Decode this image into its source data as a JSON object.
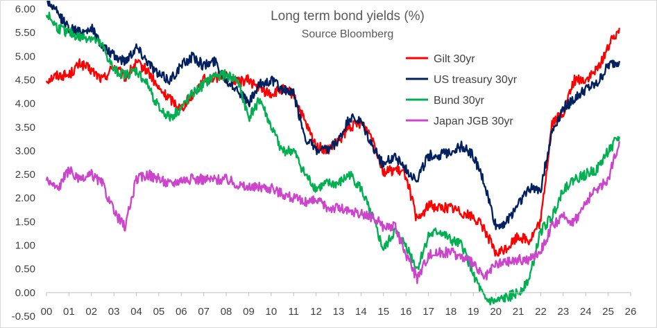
{
  "chart_data": {
    "type": "line",
    "title": "Long term bond yields (%)",
    "subtitle": "Source Bloomberg",
    "xlabel": "",
    "ylabel": "",
    "xlim": [
      0,
      26
    ],
    "ylim": [
      -0.5,
      6.0
    ],
    "x_ticks": [
      "00",
      "01",
      "02",
      "03",
      "04",
      "05",
      "06",
      "07",
      "08",
      "09",
      "10",
      "11",
      "12",
      "13",
      "14",
      "15",
      "16",
      "17",
      "18",
      "19",
      "20",
      "21",
      "22",
      "23",
      "24",
      "25",
      "26"
    ],
    "y_ticks": [
      "-0.50",
      "0.00",
      "0.50",
      "1.00",
      "1.50",
      "2.00",
      "2.50",
      "3.00",
      "3.50",
      "4.00",
      "4.50",
      "5.00",
      "5.50",
      "6.00"
    ],
    "grid": false,
    "legend_position": "top-right",
    "series": [
      {
        "name": "Gilt 30yr",
        "color": "#ff0000",
        "points": [
          [
            0,
            4.5
          ],
          [
            0.5,
            4.6
          ],
          [
            1,
            4.6
          ],
          [
            1.5,
            4.85
          ],
          [
            2,
            4.7
          ],
          [
            2.5,
            4.5
          ],
          [
            3,
            4.8
          ],
          [
            3.5,
            4.55
          ],
          [
            4,
            4.85
          ],
          [
            4.5,
            4.7
          ],
          [
            5,
            4.3
          ],
          [
            5.5,
            4.1
          ],
          [
            6,
            3.9
          ],
          [
            6.5,
            4.2
          ],
          [
            7,
            4.5
          ],
          [
            7.5,
            4.55
          ],
          [
            8,
            4.6
          ],
          [
            8.5,
            4.45
          ],
          [
            9,
            4.5
          ],
          [
            9.5,
            4.3
          ],
          [
            10,
            4.2
          ],
          [
            10.5,
            4.3
          ],
          [
            11,
            4.2
          ],
          [
            11.5,
            3.6
          ],
          [
            12,
            3.1
          ],
          [
            12.5,
            3.0
          ],
          [
            13,
            3.2
          ],
          [
            13.5,
            3.5
          ],
          [
            14,
            3.6
          ],
          [
            14.5,
            3.3
          ],
          [
            15,
            2.55
          ],
          [
            15.5,
            2.6
          ],
          [
            16,
            2.5
          ],
          [
            16.5,
            1.5
          ],
          [
            17,
            1.85
          ],
          [
            17.5,
            1.8
          ],
          [
            18,
            1.8
          ],
          [
            18.5,
            1.7
          ],
          [
            19,
            1.6
          ],
          [
            19.5,
            1.35
          ],
          [
            20,
            0.8
          ],
          [
            20.5,
            0.95
          ],
          [
            21,
            1.2
          ],
          [
            21.5,
            1.1
          ],
          [
            22,
            1.5
          ],
          [
            22.5,
            3.6
          ],
          [
            23,
            3.8
          ],
          [
            23.5,
            4.5
          ],
          [
            24,
            4.5
          ],
          [
            24.5,
            4.7
          ],
          [
            25,
            5.2
          ],
          [
            25.5,
            5.6
          ]
        ]
      },
      {
        "name": "US treasury 30yr",
        "color": "#002060",
        "points": [
          [
            0,
            6.2
          ],
          [
            0.5,
            5.9
          ],
          [
            1,
            5.6
          ],
          [
            1.5,
            5.5
          ],
          [
            2,
            5.6
          ],
          [
            2.5,
            5.2
          ],
          [
            3,
            5.0
          ],
          [
            3.5,
            4.9
          ],
          [
            4,
            5.2
          ],
          [
            4.5,
            4.9
          ],
          [
            5,
            4.6
          ],
          [
            5.5,
            4.5
          ],
          [
            6,
            4.8
          ],
          [
            6.5,
            5.0
          ],
          [
            7,
            4.8
          ],
          [
            7.5,
            4.9
          ],
          [
            8,
            4.5
          ],
          [
            8.5,
            4.3
          ],
          [
            9,
            4.0
          ],
          [
            9.5,
            4.4
          ],
          [
            10,
            4.5
          ],
          [
            10.5,
            4.3
          ],
          [
            11,
            4.2
          ],
          [
            11.5,
            3.3
          ],
          [
            12,
            3.0
          ],
          [
            12.5,
            3.0
          ],
          [
            13,
            3.2
          ],
          [
            13.5,
            3.7
          ],
          [
            14,
            3.6
          ],
          [
            14.5,
            3.1
          ],
          [
            15,
            2.7
          ],
          [
            15.5,
            2.9
          ],
          [
            16,
            2.6
          ],
          [
            16.5,
            2.4
          ],
          [
            17,
            2.9
          ],
          [
            17.5,
            2.9
          ],
          [
            18,
            3.0
          ],
          [
            18.5,
            3.1
          ],
          [
            19,
            2.9
          ],
          [
            19.5,
            2.3
          ],
          [
            20,
            1.4
          ],
          [
            20.5,
            1.5
          ],
          [
            21,
            1.9
          ],
          [
            21.5,
            2.2
          ],
          [
            22,
            2.2
          ],
          [
            22.5,
            3.4
          ],
          [
            23,
            3.9
          ],
          [
            23.5,
            4.1
          ],
          [
            24,
            4.3
          ],
          [
            24.5,
            4.4
          ],
          [
            25,
            4.8
          ],
          [
            25.5,
            4.9
          ]
        ]
      },
      {
        "name": "Bund 30yr",
        "color": "#00b050",
        "points": [
          [
            0,
            5.9
          ],
          [
            0.5,
            5.6
          ],
          [
            1,
            5.5
          ],
          [
            1.5,
            5.4
          ],
          [
            2,
            5.4
          ],
          [
            2.5,
            5.2
          ],
          [
            3,
            4.7
          ],
          [
            3.5,
            4.6
          ],
          [
            4,
            4.7
          ],
          [
            4.5,
            4.4
          ],
          [
            5,
            3.9
          ],
          [
            5.5,
            3.7
          ],
          [
            6,
            3.9
          ],
          [
            6.5,
            4.2
          ],
          [
            7,
            4.4
          ],
          [
            7.5,
            4.6
          ],
          [
            8,
            4.6
          ],
          [
            8.5,
            4.5
          ],
          [
            9,
            3.7
          ],
          [
            9.5,
            4.1
          ],
          [
            10,
            3.5
          ],
          [
            10.5,
            3.0
          ],
          [
            11,
            3.0
          ],
          [
            11.5,
            2.5
          ],
          [
            12,
            2.2
          ],
          [
            12.5,
            2.3
          ],
          [
            13,
            2.3
          ],
          [
            13.5,
            2.5
          ],
          [
            14,
            2.2
          ],
          [
            14.5,
            1.6
          ],
          [
            15,
            0.9
          ],
          [
            15.5,
            1.3
          ],
          [
            16,
            1.0
          ],
          [
            16.5,
            0.5
          ],
          [
            17,
            1.2
          ],
          [
            17.5,
            1.3
          ],
          [
            18,
            1.1
          ],
          [
            18.5,
            1.0
          ],
          [
            19,
            0.4
          ],
          [
            19.5,
            -0.15
          ],
          [
            20,
            -0.2
          ],
          [
            20.5,
            -0.1
          ],
          [
            21,
            0.0
          ],
          [
            21.5,
            0.3
          ],
          [
            22,
            1.3
          ],
          [
            22.5,
            1.6
          ],
          [
            23,
            2.2
          ],
          [
            23.5,
            2.4
          ],
          [
            24,
            2.5
          ],
          [
            24.5,
            2.6
          ],
          [
            25,
            3.0
          ],
          [
            25.5,
            3.3
          ]
        ]
      },
      {
        "name": "Japan JGB 30yr",
        "color": "#cc44cc",
        "points": [
          [
            0,
            2.4
          ],
          [
            0.5,
            2.2
          ],
          [
            1,
            2.6
          ],
          [
            1.5,
            2.35
          ],
          [
            2,
            2.5
          ],
          [
            2.5,
            2.3
          ],
          [
            3,
            1.7
          ],
          [
            3.5,
            1.4
          ],
          [
            4,
            2.4
          ],
          [
            4.5,
            2.5
          ],
          [
            5,
            2.4
          ],
          [
            5.5,
            2.3
          ],
          [
            6,
            2.4
          ],
          [
            6.5,
            2.4
          ],
          [
            7,
            2.4
          ],
          [
            7.5,
            2.4
          ],
          [
            8,
            2.4
          ],
          [
            8.5,
            2.3
          ],
          [
            9,
            2.2
          ],
          [
            9.5,
            2.25
          ],
          [
            10,
            2.2
          ],
          [
            10.5,
            2.1
          ],
          [
            11,
            2.0
          ],
          [
            11.5,
            1.9
          ],
          [
            12,
            1.95
          ],
          [
            12.5,
            1.8
          ],
          [
            13,
            1.8
          ],
          [
            13.5,
            1.7
          ],
          [
            14,
            1.65
          ],
          [
            14.5,
            1.6
          ],
          [
            15,
            1.4
          ],
          [
            15.5,
            1.4
          ],
          [
            16,
            0.8
          ],
          [
            16.5,
            0.3
          ],
          [
            17,
            0.8
          ],
          [
            17.5,
            0.85
          ],
          [
            18,
            0.85
          ],
          [
            18.5,
            0.75
          ],
          [
            19,
            0.6
          ],
          [
            19.5,
            0.3
          ],
          [
            20,
            0.6
          ],
          [
            20.5,
            0.65
          ],
          [
            21,
            0.7
          ],
          [
            21.5,
            0.7
          ],
          [
            22,
            0.9
          ],
          [
            22.5,
            1.4
          ],
          [
            23,
            1.6
          ],
          [
            23.5,
            1.5
          ],
          [
            24,
            1.9
          ],
          [
            24.5,
            2.2
          ],
          [
            25,
            2.4
          ],
          [
            25.5,
            3.2
          ]
        ]
      }
    ]
  }
}
